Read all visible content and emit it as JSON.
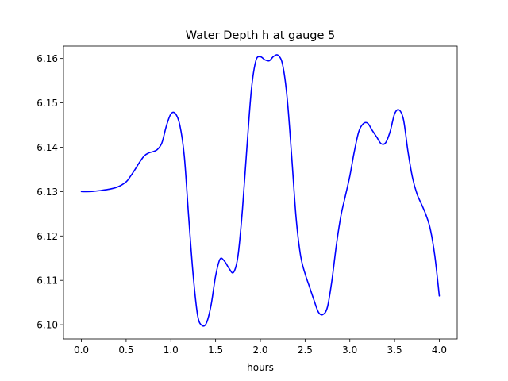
{
  "chart_data": {
    "type": "line",
    "title": "Water Depth h at gauge 5",
    "xlabel": "hours",
    "ylabel": "",
    "xlim": [
      -0.2,
      4.2
    ],
    "ylim": [
      6.0968,
      6.1628
    ],
    "x_ticks": [
      "0.0",
      "0.5",
      "1.0",
      "1.5",
      "2.0",
      "2.5",
      "3.0",
      "3.5",
      "4.0"
    ],
    "y_ticks": [
      "6.10",
      "6.11",
      "6.12",
      "6.13",
      "6.14",
      "6.15",
      "6.16"
    ],
    "grid": false,
    "series_color": "#0000ff",
    "series": [
      {
        "x": [
          0.0,
          0.1,
          0.2,
          0.3,
          0.4,
          0.5,
          0.55,
          0.6,
          0.65,
          0.7,
          0.75,
          0.8,
          0.85,
          0.9,
          0.95,
          1.0,
          1.05,
          1.1,
          1.15,
          1.2,
          1.25,
          1.3,
          1.35,
          1.4,
          1.45,
          1.5,
          1.55,
          1.6,
          1.65,
          1.7,
          1.75,
          1.8,
          1.85,
          1.9,
          1.95,
          2.0,
          2.05,
          2.1,
          2.15,
          2.2,
          2.25,
          2.3,
          2.35,
          2.4,
          2.45,
          2.5,
          2.55,
          2.6,
          2.65,
          2.7,
          2.75,
          2.8,
          2.85,
          2.9,
          2.95,
          3.0,
          3.05,
          3.1,
          3.15,
          3.2,
          3.25,
          3.3,
          3.35,
          3.4,
          3.45,
          3.5,
          3.55,
          3.6,
          3.65,
          3.7,
          3.75,
          3.8,
          3.85,
          3.9,
          3.95,
          4.0
        ],
        "y": [
          6.13,
          6.13,
          6.1302,
          6.1305,
          6.131,
          6.1322,
          6.1335,
          6.135,
          6.1366,
          6.138,
          6.1387,
          6.139,
          6.1395,
          6.141,
          6.1448,
          6.1475,
          6.1476,
          6.145,
          6.138,
          6.124,
          6.111,
          6.102,
          6.0998,
          6.1005,
          6.1045,
          6.111,
          6.1148,
          6.1143,
          6.1127,
          6.1118,
          6.1155,
          6.126,
          6.14,
          6.153,
          6.1595,
          6.1604,
          6.1597,
          6.1595,
          6.1605,
          6.1607,
          6.1585,
          6.151,
          6.138,
          6.124,
          6.1155,
          6.1115,
          6.1085,
          6.1055,
          6.1028,
          6.1023,
          6.104,
          6.11,
          6.118,
          6.1245,
          6.129,
          6.1335,
          6.139,
          6.1435,
          6.1453,
          6.1454,
          6.1438,
          6.1423,
          6.1408,
          6.141,
          6.1435,
          6.1475,
          6.1484,
          6.1462,
          6.139,
          6.1332,
          6.1295,
          6.1272,
          6.1248,
          6.1215,
          6.1155,
          6.1065
        ]
      }
    ]
  }
}
